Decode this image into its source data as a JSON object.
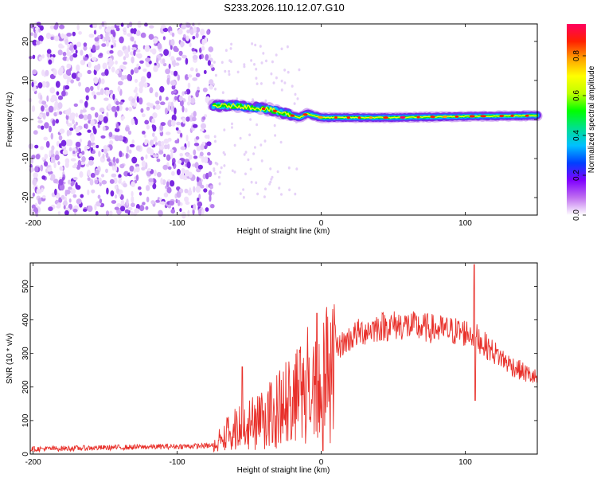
{
  "title": "S233.2026.110.12.07.G10",
  "chart_data": [
    {
      "type": "heatmap",
      "name": "spectrogram",
      "xlabel": "Height of straight line (km)",
      "ylabel": "Frequency (Hz)",
      "xlim": [
        -202,
        150
      ],
      "ylim": [
        -24.5,
        24.5
      ],
      "xticks": [
        -200,
        -100,
        0,
        100
      ],
      "yticks": [
        -20,
        -10,
        0,
        10,
        20
      ],
      "noise_region_x": [
        -202,
        -75
      ],
      "signal_ridge": [
        {
          "x": -75,
          "y": 3.5
        },
        {
          "x": -60,
          "y": 3.5
        },
        {
          "x": -45,
          "y": 3
        },
        {
          "x": -35,
          "y": 2.5
        },
        {
          "x": -25,
          "y": 1.5
        },
        {
          "x": -15,
          "y": 0.5
        },
        {
          "x": -10,
          "y": 1.5
        },
        {
          "x": 0,
          "y": 0.5
        },
        {
          "x": 50,
          "y": 0.5
        },
        {
          "x": 100,
          "y": 0.8
        },
        {
          "x": 150,
          "y": 1
        }
      ],
      "colorbar": {
        "label": "Normalized spectral amplitude",
        "range": [
          0.0,
          0.96
        ],
        "ticks": [
          0.0,
          0.2,
          0.4,
          0.6,
          0.8
        ],
        "tick_labels": [
          "0.0",
          "0.2",
          "0.4",
          "0.6",
          "0.8"
        ],
        "colors": [
          "#ffffff",
          "#c070f0",
          "#8000ff",
          "#0040ff",
          "#00c0ff",
          "#00e090",
          "#00ff00",
          "#c0ff00",
          "#ffff00",
          "#ffa000",
          "#ff2000",
          "#ff0060"
        ]
      }
    },
    {
      "type": "line",
      "name": "snr",
      "xlabel": "Height of straight line (km)",
      "ylabel": "SNR (10 * v/v)",
      "xlim": [
        -202,
        150
      ],
      "ylim": [
        0,
        570
      ],
      "xticks": [
        -200,
        -100,
        0,
        100
      ],
      "yticks": [
        0,
        100,
        200,
        300,
        400,
        500
      ],
      "color": "#e8302a",
      "envelope": [
        {
          "x": -202,
          "y": 15
        },
        {
          "x": -75,
          "y": 25
        },
        {
          "x": -65,
          "y": 80
        },
        {
          "x": -45,
          "y": 120
        },
        {
          "x": -30,
          "y": 160
        },
        {
          "x": -15,
          "y": 230
        },
        {
          "x": 0,
          "y": 280
        },
        {
          "x": 15,
          "y": 330
        },
        {
          "x": 25,
          "y": 360
        },
        {
          "x": 40,
          "y": 380
        },
        {
          "x": 55,
          "y": 385
        },
        {
          "x": 75,
          "y": 375
        },
        {
          "x": 95,
          "y": 365
        },
        {
          "x": 105,
          "y": 360
        },
        {
          "x": 115,
          "y": 320
        },
        {
          "x": 130,
          "y": 270
        },
        {
          "x": 140,
          "y": 245
        },
        {
          "x": 150,
          "y": 225
        }
      ],
      "spikes": [
        {
          "x": -55,
          "y": 260
        },
        {
          "x": -3,
          "y": 420
        },
        {
          "x": 1,
          "y": 10
        },
        {
          "x": 106,
          "y": 565
        },
        {
          "x": 107,
          "y": 160
        }
      ]
    }
  ]
}
